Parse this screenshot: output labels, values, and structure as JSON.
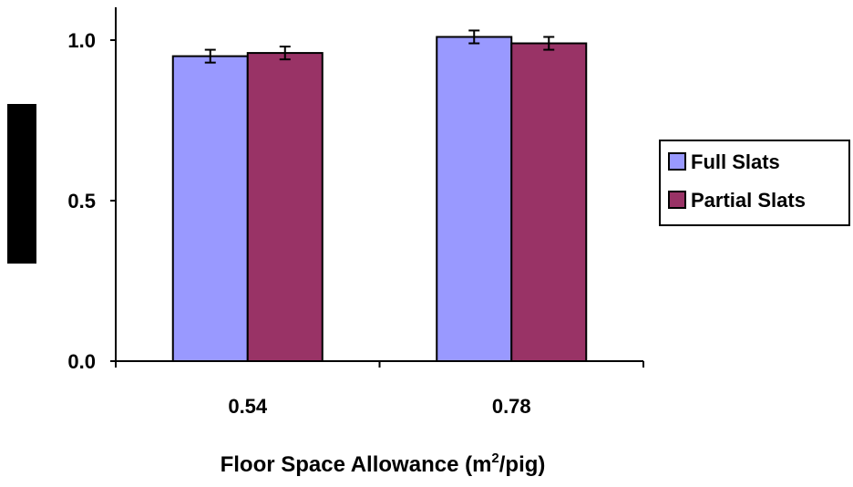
{
  "chart_data": {
    "type": "bar",
    "title": "",
    "xlabel": "Floor Space Allowance (m",
    "xlabel_superscript": "2",
    "xlabel_suffix": "/pig)",
    "ylabel": "",
    "categories": [
      "0.54",
      "0.78"
    ],
    "ylim": [
      0.0,
      1.0
    ],
    "yticks": [
      "0.0",
      "0.5",
      "1.0"
    ],
    "yticks_values": [
      0.0,
      0.5,
      1.0
    ],
    "grid": false,
    "legend_position": "right",
    "series": [
      {
        "name": "Full Slats",
        "color": "#9999ff",
        "values": [
          0.95,
          1.01
        ],
        "errors": [
          0.02,
          0.02
        ]
      },
      {
        "name": "Partial Slats",
        "color": "#993366",
        "values": [
          0.96,
          0.99
        ],
        "errors": [
          0.02,
          0.02
        ]
      }
    ]
  },
  "colors": {
    "axis": "#000000",
    "background": "#ffffff"
  }
}
